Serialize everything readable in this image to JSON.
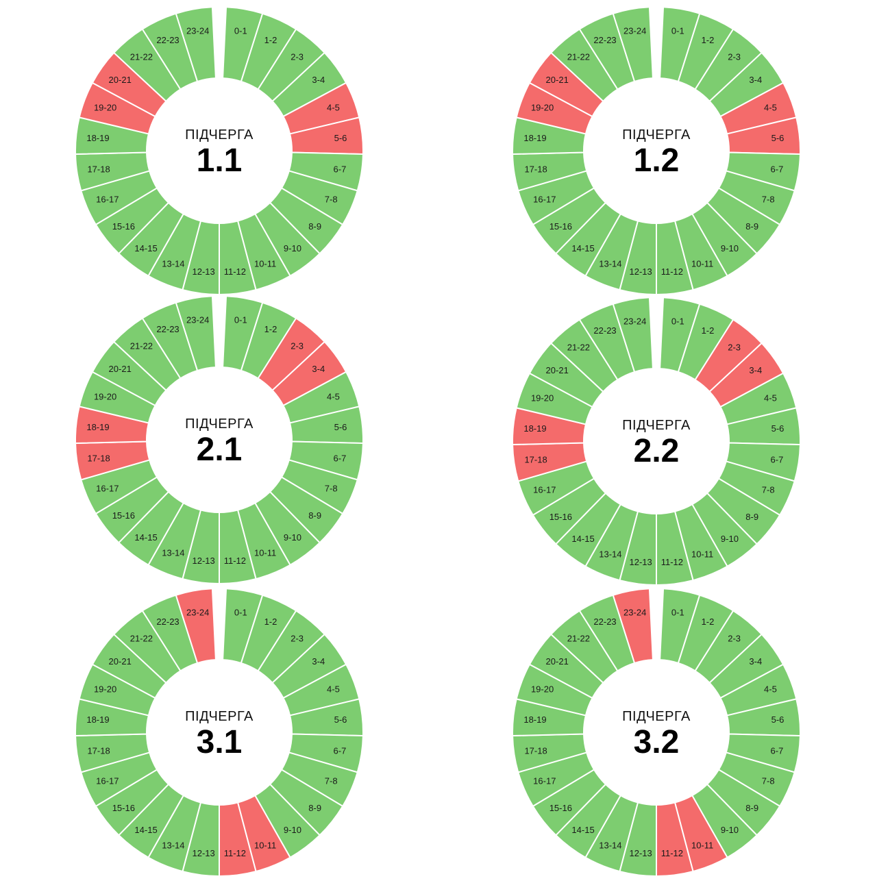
{
  "colors": {
    "on": "#7dcd70",
    "off": "#f46b6b",
    "separator": "#ffffff"
  },
  "hour_labels": [
    "0-1",
    "1-2",
    "2-3",
    "3-4",
    "4-5",
    "5-6",
    "6-7",
    "7-8",
    "8-9",
    "9-10",
    "10-11",
    "11-12",
    "12-13",
    "13-14",
    "14-15",
    "15-16",
    "16-17",
    "17-18",
    "18-19",
    "19-20",
    "20-21",
    "21-22",
    "22-23",
    "23-24"
  ],
  "chart_data": [
    {
      "type": "pie",
      "label": "ПІДЧЕРГА",
      "queue": "1.1",
      "off_hours": [
        "4-5",
        "5-6",
        "19-20",
        "20-21"
      ]
    },
    {
      "type": "pie",
      "label": "ПІДЧЕРГА",
      "queue": "1.2",
      "off_hours": [
        "4-5",
        "5-6",
        "19-20",
        "20-21"
      ]
    },
    {
      "type": "pie",
      "label": "ПІДЧЕРГА",
      "queue": "2.1",
      "off_hours": [
        "2-3",
        "3-4",
        "17-18",
        "18-19"
      ]
    },
    {
      "type": "pie",
      "label": "ПІДЧЕРГА",
      "queue": "2.2",
      "off_hours": [
        "2-3",
        "3-4",
        "17-18",
        "18-19"
      ]
    },
    {
      "type": "pie",
      "label": "ПІДЧЕРГА",
      "queue": "3.1",
      "off_hours": [
        "10-11",
        "11-12",
        "23-24"
      ]
    },
    {
      "type": "pie",
      "label": "ПІДЧЕРГА",
      "queue": "3.2",
      "off_hours": [
        "10-11",
        "11-12",
        "23-24"
      ]
    }
  ]
}
